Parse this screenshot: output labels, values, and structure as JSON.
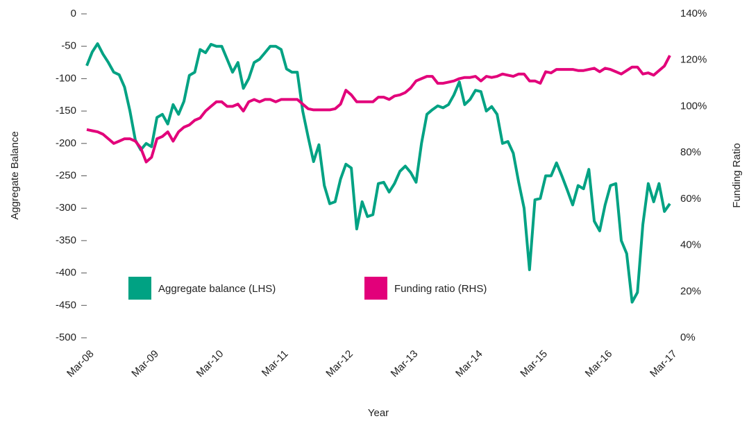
{
  "chart_data": {
    "type": "line",
    "x_label": "Year",
    "y_label": "Aggregate Balance",
    "y2_label": "Funding Ratio",
    "categories": [
      "Mar-08",
      null,
      null,
      null,
      null,
      null,
      null,
      null,
      null,
      null,
      null,
      null,
      "Mar-09",
      null,
      null,
      null,
      null,
      null,
      null,
      null,
      null,
      null,
      null,
      null,
      "Mar-10",
      null,
      null,
      null,
      null,
      null,
      null,
      null,
      null,
      null,
      null,
      null,
      "Mar-11",
      null,
      null,
      null,
      null,
      null,
      null,
      null,
      null,
      null,
      null,
      null,
      "Mar-12",
      null,
      null,
      null,
      null,
      null,
      null,
      null,
      null,
      null,
      null,
      null,
      "Mar-13",
      null,
      null,
      null,
      null,
      null,
      null,
      null,
      null,
      null,
      null,
      null,
      "Mar-14",
      null,
      null,
      null,
      null,
      null,
      null,
      null,
      null,
      null,
      null,
      null,
      "Mar-15",
      null,
      null,
      null,
      null,
      null,
      null,
      null,
      null,
      null,
      null,
      null,
      "Mar-16",
      null,
      null,
      null,
      null,
      null,
      null,
      null,
      null,
      null,
      null,
      null,
      "Mar-17"
    ],
    "series": [
      {
        "name": "Aggregate balance (LHS)",
        "color": "#00a283",
        "axis": "y",
        "values": [
          -80,
          -59,
          -46,
          -62,
          -75,
          -90,
          -94,
          -113,
          -150,
          -195,
          -210,
          -200,
          -205,
          -160,
          -155,
          -170,
          -140,
          -155,
          -135,
          -95,
          -90,
          -55,
          -60,
          -47,
          -50,
          -50,
          -70,
          -90,
          -75,
          -115,
          -100,
          -75,
          -70,
          -60,
          -50,
          -50,
          -55,
          -85,
          -90,
          -90,
          -150,
          -190,
          -228,
          -202,
          -265,
          -293,
          -290,
          -255,
          -232,
          -238,
          -332,
          -290,
          -313,
          -310,
          -262,
          -260,
          -275,
          -262,
          -243,
          -235,
          -245,
          -260,
          -200,
          -155,
          -148,
          -142,
          -145,
          -140,
          -125,
          -105,
          -140,
          -132,
          -118,
          -120,
          -150,
          -143,
          -155,
          -200,
          -197,
          -215,
          -260,
          -300,
          -395,
          -287,
          -285,
          -250,
          -250,
          -230,
          -250,
          -272,
          -295,
          -265,
          -270,
          -240,
          -320,
          -335,
          -295,
          -265,
          -262,
          -350,
          -370,
          -445,
          -430,
          -325,
          -262,
          -290,
          -262,
          -305,
          -293
        ]
      },
      {
        "name": "Funding ratio (RHS)",
        "color": "#e2007a",
        "axis": "y2",
        "values": [
          90,
          89.5,
          89,
          88,
          86,
          84,
          85,
          86,
          86,
          85,
          82,
          76,
          78,
          86,
          87,
          89,
          85,
          89,
          91,
          92,
          94,
          95,
          98,
          100,
          102,
          102,
          100,
          100,
          101,
          98,
          102,
          103,
          102,
          103,
          103,
          102,
          103,
          103,
          103,
          103,
          101,
          99,
          98.5,
          98.5,
          98.5,
          98.5,
          99,
          101,
          107,
          105,
          102,
          102,
          102,
          102,
          104,
          104,
          103,
          104.5,
          105,
          106,
          108,
          111,
          112,
          113,
          113,
          110,
          110,
          110.5,
          111,
          112,
          112.5,
          112.5,
          113,
          111,
          113,
          112.5,
          113,
          114,
          113.5,
          113,
          114,
          114,
          111,
          111,
          110,
          115,
          114.5,
          116,
          116,
          116,
          116,
          115.5,
          115.5,
          116,
          116.5,
          115,
          116.5,
          116,
          115,
          114,
          115.5,
          117,
          117,
          114,
          114.5,
          113.5,
          115.5,
          117.5,
          122
        ]
      }
    ],
    "ylim": [
      -500,
      0
    ],
    "yticks": [
      0,
      -50,
      -100,
      -150,
      -200,
      -250,
      -300,
      -350,
      -400,
      -450,
      -500
    ],
    "y2lim": [
      0,
      140
    ],
    "y2ticks": [
      {
        "value": 0,
        "label": "0%"
      },
      {
        "value": 20,
        "label": "20%"
      },
      {
        "value": 40,
        "label": "40%"
      },
      {
        "value": 60,
        "label": "60%"
      },
      {
        "value": 80,
        "label": "80%"
      },
      {
        "value": 100,
        "label": "100%"
      },
      {
        "value": 120,
        "label": "120%"
      },
      {
        "value": 140,
        "label": "140%"
      }
    ],
    "grid": false
  }
}
